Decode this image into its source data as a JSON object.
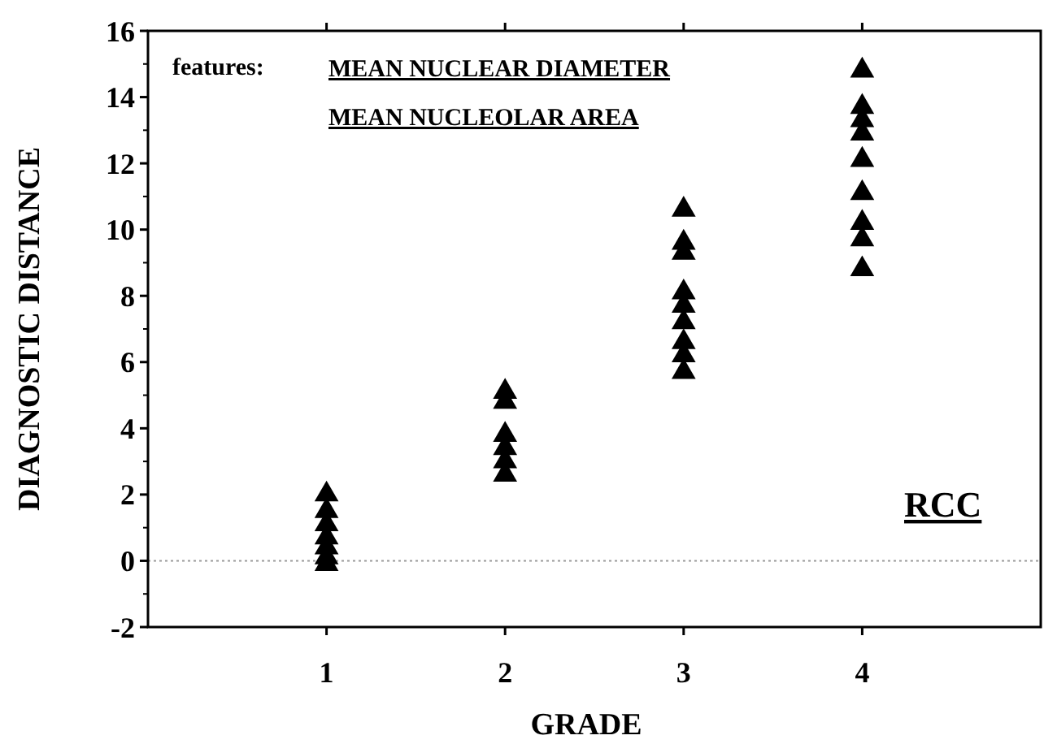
{
  "chart_data": {
    "type": "scatter",
    "xlabel": "GRADE",
    "ylabel": "DIAGNOSTIC DISTANCE",
    "xlim": [
      0,
      5
    ],
    "xticks": [
      1,
      2,
      3,
      4
    ],
    "ylim": [
      -2,
      16
    ],
    "yticks": [
      -2,
      0,
      2,
      4,
      6,
      8,
      10,
      12,
      14,
      16
    ],
    "marker": "triangle",
    "grid": false,
    "series": [
      {
        "color": "#000000",
        "x": [
          1,
          1,
          1,
          1,
          1,
          1,
          1,
          2,
          2,
          2,
          2,
          2,
          2,
          3,
          3,
          3,
          3,
          3,
          3,
          3,
          3,
          3,
          4,
          4,
          4,
          4,
          4,
          4,
          4,
          4,
          4
        ],
        "values": [
          2.1,
          1.6,
          1.2,
          0.8,
          0.5,
          0.2,
          0,
          5.2,
          4.9,
          3.9,
          3.5,
          3.1,
          2.7,
          10.7,
          9.7,
          9.4,
          8.2,
          7.8,
          7.3,
          6.7,
          6.3,
          5.8,
          14.9,
          13.8,
          13.4,
          13.0,
          12.2,
          11.2,
          10.3,
          9.8,
          8.9
        ]
      }
    ],
    "ref_lines": [
      {
        "axis": "y",
        "value": 0,
        "color": "#999999",
        "line_style": "dotted"
      }
    ],
    "annotations": [
      "features:",
      "MEAN NUCLEAR DIAMETER",
      "MEAN NUCLEOLAR AREA",
      "RCC"
    ]
  }
}
